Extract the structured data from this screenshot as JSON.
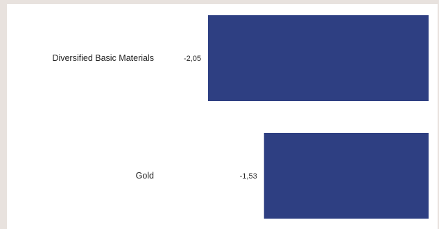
{
  "chart_data": {
    "type": "bar",
    "orientation": "horizontal",
    "categories": [
      "Diversified Basic Materials",
      "Gold"
    ],
    "values": [
      -2.05,
      -1.53
    ],
    "value_labels": [
      "-2,05",
      "-1,53"
    ],
    "xlim": [
      -2.05,
      0
    ],
    "grid": false,
    "legend": "none",
    "colors": {
      "bar": "#2e3f82"
    }
  }
}
